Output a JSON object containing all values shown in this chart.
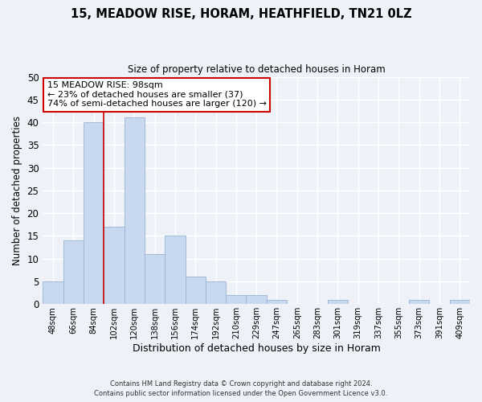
{
  "title": "15, MEADOW RISE, HORAM, HEATHFIELD, TN21 0LZ",
  "subtitle": "Size of property relative to detached houses in Horam",
  "xlabel": "Distribution of detached houses by size in Horam",
  "ylabel": "Number of detached properties",
  "bar_color": "#c8d8ee",
  "bar_edgecolor": "#9ab4d4",
  "categories": [
    "48sqm",
    "66sqm",
    "84sqm",
    "102sqm",
    "120sqm",
    "138sqm",
    "156sqm",
    "174sqm",
    "192sqm",
    "210sqm",
    "229sqm",
    "247sqm",
    "265sqm",
    "283sqm",
    "301sqm",
    "319sqm",
    "337sqm",
    "355sqm",
    "373sqm",
    "391sqm",
    "409sqm"
  ],
  "values": [
    5,
    14,
    40,
    17,
    41,
    11,
    15,
    6,
    5,
    2,
    2,
    1,
    0,
    0,
    1,
    0,
    0,
    0,
    1,
    0,
    1
  ],
  "ylim": [
    0,
    50
  ],
  "yticks": [
    0,
    5,
    10,
    15,
    20,
    25,
    30,
    35,
    40,
    45,
    50
  ],
  "property_line_color": "#cc0000",
  "property_line_index": 2.5,
  "annotation_text": "15 MEADOW RISE: 98sqm\n← 23% of detached houses are smaller (37)\n74% of semi-detached houses are larger (120) →",
  "annotation_box_facecolor": "#ffffff",
  "annotation_box_edgecolor": "#cc0000",
  "footer_line1": "Contains HM Land Registry data © Crown copyright and database right 2024.",
  "footer_line2": "Contains public sector information licensed under the Open Government Licence v3.0.",
  "background_color": "#eef2f8",
  "plot_background_color": "#eef2f8",
  "grid_color": "#ffffff"
}
